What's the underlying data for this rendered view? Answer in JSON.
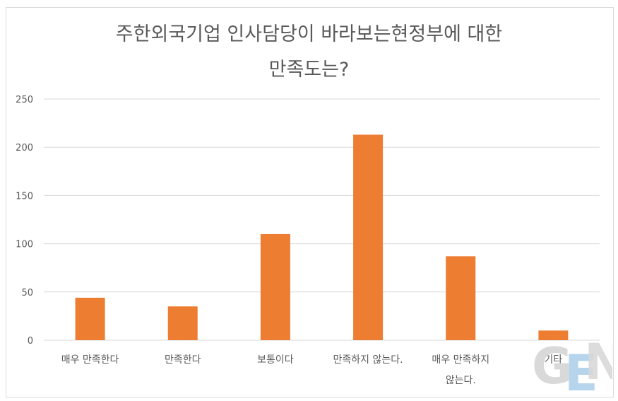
{
  "chart_data": {
    "type": "bar",
    "title_lines": [
      "주한외국기업 인사담당이 바라보는현정부에 대한",
      "만족도는?"
    ],
    "categories": [
      [
        "매우 만족한다"
      ],
      [
        "만족한다"
      ],
      [
        "보통이다"
      ],
      [
        "만족하지 않는다."
      ],
      [
        "매우 만족하지",
        "않는다."
      ],
      [
        "기타"
      ]
    ],
    "values": [
      44,
      35,
      110,
      213,
      87,
      10
    ],
    "ylim": [
      0,
      250
    ],
    "yticks": [
      0,
      50,
      100,
      150,
      200,
      250
    ],
    "grid": true,
    "legend": "none",
    "colors": {
      "bar": "#ED7D31",
      "grid": "#D9D9D9",
      "axis_text": "#595959",
      "title_text": "#595959"
    }
  },
  "watermark": {
    "text": "GEN"
  }
}
